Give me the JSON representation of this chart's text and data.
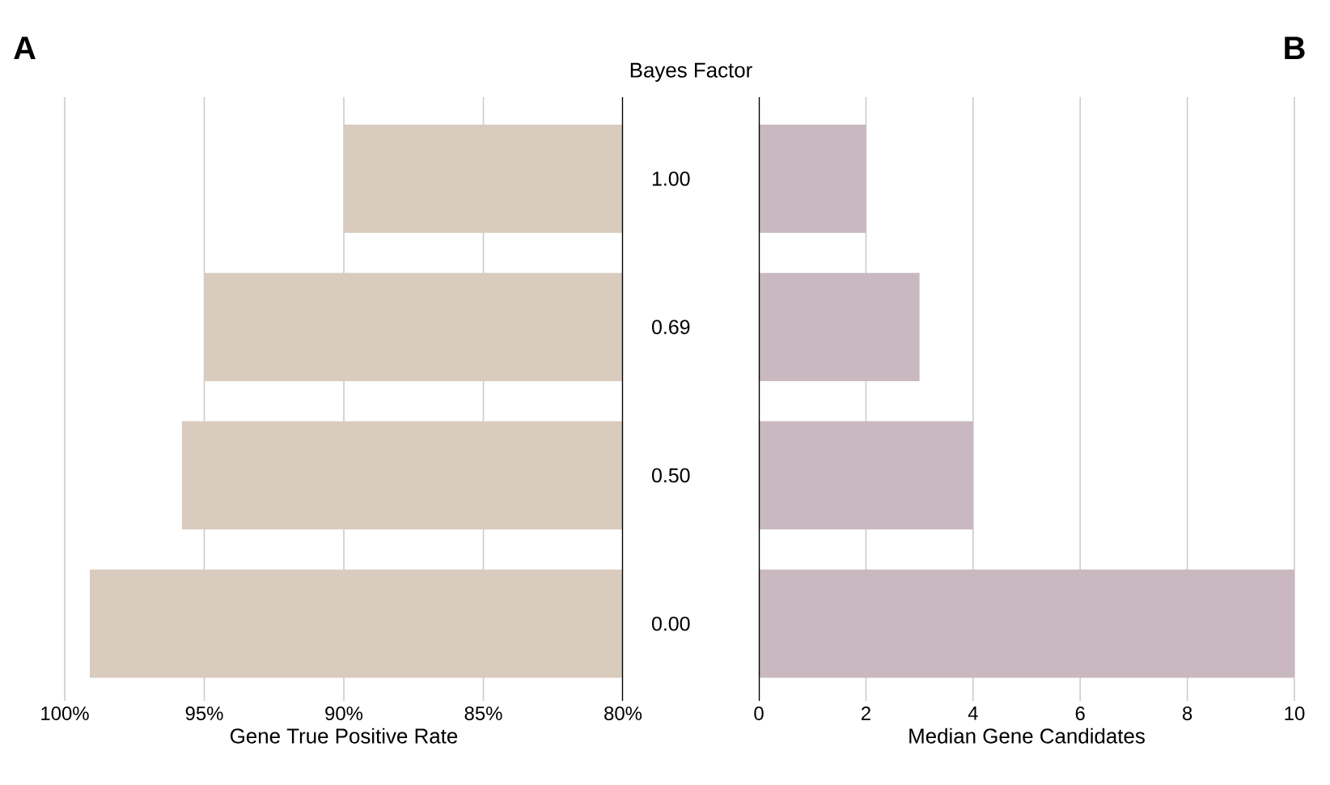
{
  "chart_data": [
    {
      "type": "bar",
      "orientation": "horizontal",
      "title": "A",
      "ylabel": "Bayes Factor",
      "xlabel": "Gene True Positive Rate",
      "categories": [
        "1.00",
        "0.69",
        "0.50",
        "0.00"
      ],
      "values": [
        90,
        95,
        95.8,
        99.1
      ],
      "color": "#d9cbbe",
      "xlim": [
        100,
        80
      ],
      "xticks": [
        {
          "value": 100,
          "label": "100%"
        },
        {
          "value": 95,
          "label": "95%"
        },
        {
          "value": 90,
          "label": "90%"
        },
        {
          "value": 85,
          "label": "85%"
        },
        {
          "value": 80,
          "label": "80%"
        }
      ],
      "grid": "x"
    },
    {
      "type": "bar",
      "orientation": "horizontal",
      "title": "B",
      "xlabel": "Median Gene Candidates",
      "categories": [
        "1.00",
        "0.69",
        "0.50",
        "0.00"
      ],
      "values": [
        2,
        3,
        4,
        10
      ],
      "color": "#c9b8c0",
      "xlim": [
        0,
        10
      ],
      "xticks": [
        0,
        2,
        4,
        6,
        8,
        10
      ],
      "grid": "x",
      "tick_labels": "x"
    }
  ]
}
